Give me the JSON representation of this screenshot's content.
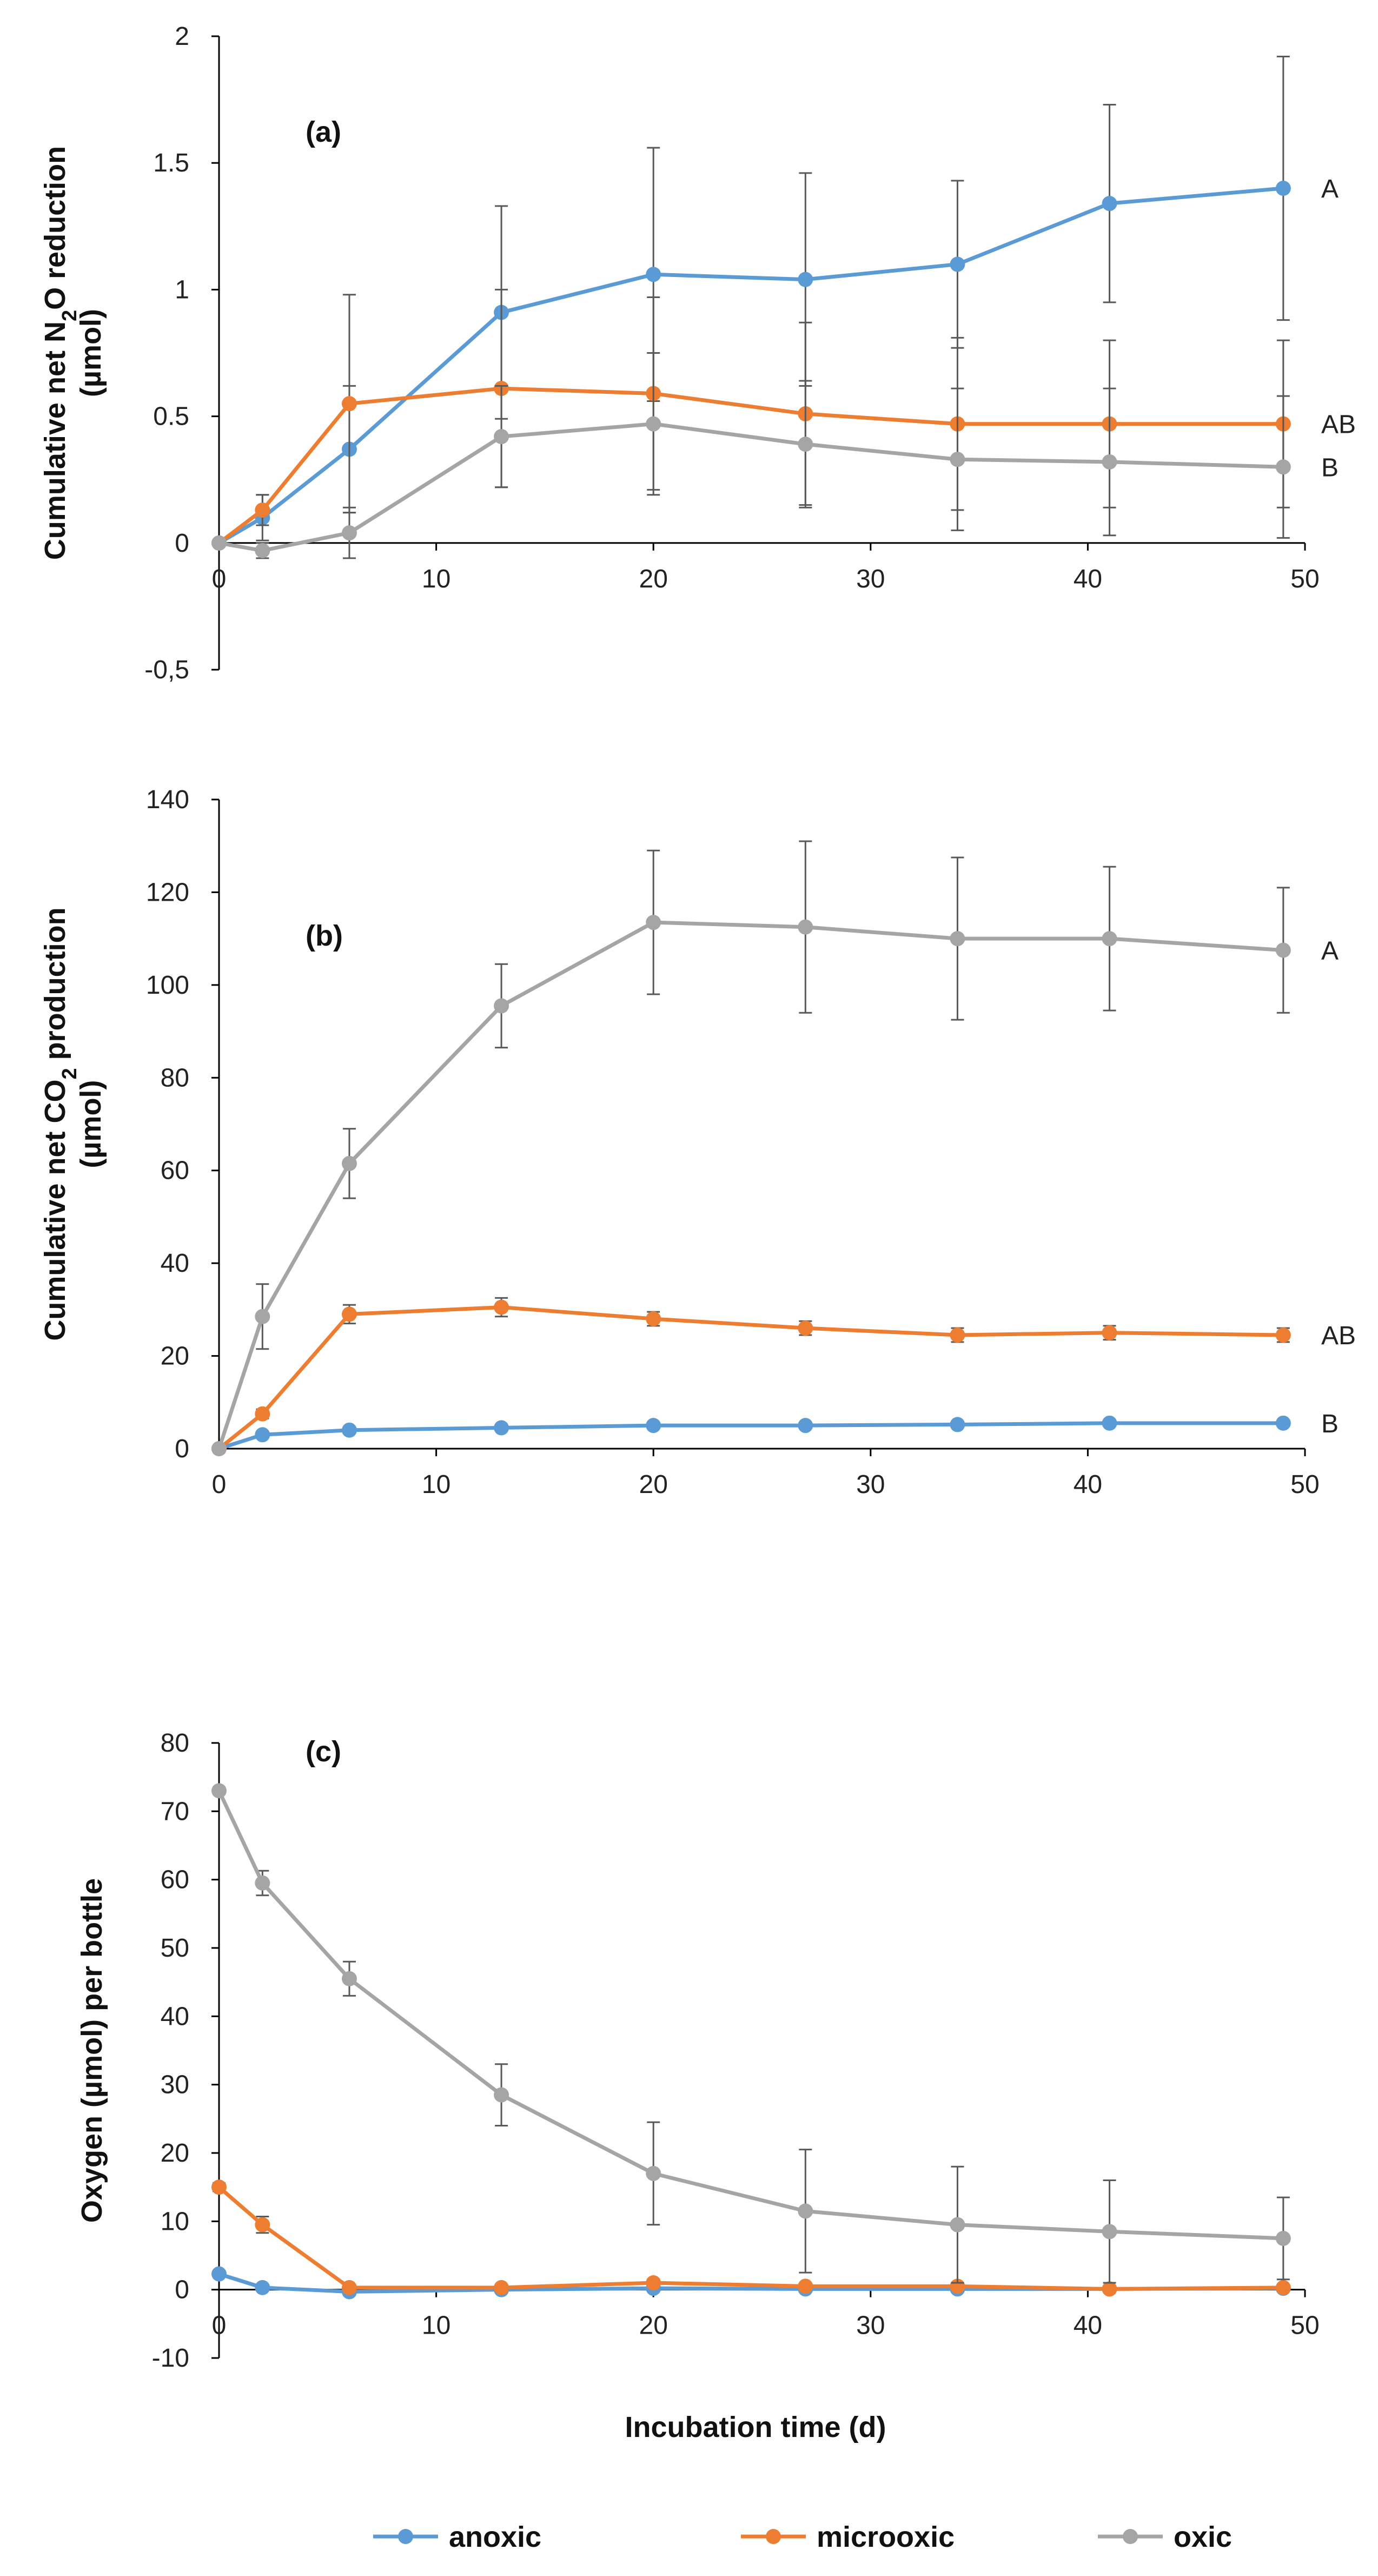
{
  "colors": {
    "anoxic": "#5B9BD5",
    "microoxic": "#ED7D31",
    "oxic": "#A5A5A5",
    "axis": "#000000",
    "errorbar": "#595959"
  },
  "legend": [
    {
      "key": "anoxic",
      "label": "anoxic"
    },
    {
      "key": "microoxic",
      "label": "microoxic"
    },
    {
      "key": "oxic",
      "label": "oxic"
    }
  ],
  "chart_data": [
    {
      "type": "line",
      "panel_label": "(a)",
      "ylabel_lines": [
        [
          "Cumulative net N",
          "2",
          "O reduction"
        ],
        [
          "(µmol)"
        ]
      ],
      "xlabel": "",
      "xlim": [
        0,
        50
      ],
      "ylim": [
        -0.5,
        2
      ],
      "xticks": [
        0,
        10,
        20,
        30,
        40,
        50
      ],
      "xtick_labels": [
        "0",
        "10",
        "20",
        "30",
        "40",
        "50"
      ],
      "yticks": [
        -0.5,
        0,
        0.5,
        1,
        1.5,
        2
      ],
      "ytick_labels": [
        "-0,5",
        "0",
        "0.5",
        "1",
        "1.5",
        "2"
      ],
      "x": [
        0,
        2,
        6,
        13,
        20,
        27,
        34,
        41,
        49
      ],
      "series": [
        {
          "name": "anoxic",
          "values": [
            0,
            0.1,
            0.37,
            0.91,
            1.06,
            1.04,
            1.1,
            1.34,
            1.4
          ],
          "errors": [
            0,
            0.09,
            0.25,
            0.42,
            0.5,
            0.42,
            0.33,
            0.39,
            0.52
          ],
          "sig_label": "A"
        },
        {
          "name": "microoxic",
          "values": [
            0,
            0.13,
            0.55,
            0.61,
            0.59,
            0.51,
            0.47,
            0.47,
            0.47
          ],
          "errors": [
            0,
            0.06,
            0.43,
            0.39,
            0.38,
            0.36,
            0.34,
            0.33,
            0.33
          ],
          "sig_label": "AB"
        },
        {
          "name": "oxic",
          "values": [
            0,
            -0.03,
            0.04,
            0.42,
            0.47,
            0.39,
            0.33,
            0.32,
            0.3
          ],
          "errors": [
            0,
            0.03,
            0.1,
            0.2,
            0.28,
            0.25,
            0.28,
            0.29,
            0.28
          ],
          "sig_label": "B"
        }
      ]
    },
    {
      "type": "line",
      "panel_label": "(b)",
      "ylabel_lines": [
        [
          "Cumulative net CO",
          "2",
          " production"
        ],
        [
          "(µmol)"
        ]
      ],
      "xlabel": "",
      "xlim": [
        0,
        50
      ],
      "ylim": [
        0,
        140
      ],
      "xticks": [
        0,
        10,
        20,
        30,
        40,
        50
      ],
      "xtick_labels": [
        "0",
        "10",
        "20",
        "30",
        "40",
        "50"
      ],
      "yticks": [
        0,
        20,
        40,
        60,
        80,
        100,
        120,
        140
      ],
      "ytick_labels": [
        "0",
        "20",
        "40",
        "60",
        "80",
        "100",
        "120",
        "140"
      ],
      "x": [
        0,
        2,
        6,
        13,
        20,
        27,
        34,
        41,
        49
      ],
      "series": [
        {
          "name": "anoxic",
          "values": [
            0,
            3,
            4,
            4.5,
            5,
            5,
            5.2,
            5.5,
            5.5
          ],
          "errors": [
            0,
            0.5,
            0.5,
            0.5,
            0.5,
            0.5,
            0.5,
            0.5,
            0.5
          ],
          "sig_label": "B"
        },
        {
          "name": "microoxic",
          "values": [
            0,
            7.5,
            29,
            30.5,
            28,
            26,
            24.5,
            25,
            24.5
          ],
          "errors": [
            0,
            1,
            2,
            2,
            1.5,
            1.5,
            1.5,
            1.5,
            1.5
          ],
          "sig_label": "AB"
        },
        {
          "name": "oxic",
          "values": [
            0,
            28.5,
            61.5,
            95.5,
            113.5,
            112.5,
            110,
            110,
            107.5
          ],
          "errors": [
            0,
            7,
            7.5,
            9,
            15.5,
            18.5,
            17.5,
            15.5,
            13.5
          ],
          "sig_label": "A"
        }
      ]
    },
    {
      "type": "line",
      "panel_label": "(c)",
      "ylabel_lines": [
        [
          "Oxygen (µmol) per bottle"
        ]
      ],
      "xlabel": "Incubation time (d)",
      "xlim": [
        0,
        50
      ],
      "ylim": [
        -10,
        80
      ],
      "xticks": [
        0,
        10,
        20,
        30,
        40,
        50
      ],
      "xtick_labels": [
        "0",
        "10",
        "20",
        "30",
        "40",
        "50"
      ],
      "yticks": [
        -10,
        0,
        10,
        20,
        30,
        40,
        50,
        60,
        70,
        80
      ],
      "ytick_labels": [
        "-10",
        "0",
        "10",
        "20",
        "30",
        "40",
        "50",
        "60",
        "70",
        "80"
      ],
      "x": [
        0,
        2,
        6,
        13,
        20,
        27,
        34,
        41,
        49
      ],
      "series": [
        {
          "name": "anoxic",
          "values": [
            2.3,
            0.3,
            -0.3,
            0,
            0.2,
            0.1,
            0.1,
            0.1,
            0.2
          ],
          "errors": [
            0.3,
            0.3,
            0.2,
            0.2,
            0.2,
            0.2,
            0.2,
            0.2,
            0.2
          ],
          "sig_label": ""
        },
        {
          "name": "microoxic",
          "values": [
            15,
            9.5,
            0.3,
            0.3,
            1,
            0.5,
            0.5,
            0.1,
            0.3
          ],
          "errors": [
            0.6,
            1.2,
            0.4,
            0.4,
            0.5,
            0.4,
            0.4,
            0.3,
            0.3
          ],
          "sig_label": ""
        },
        {
          "name": "oxic",
          "values": [
            73,
            59.5,
            45.5,
            28.5,
            17,
            11.5,
            9.5,
            8.5,
            7.5
          ],
          "errors": [
            0.5,
            1.8,
            2.5,
            4.5,
            7.5,
            9,
            8.5,
            7.5,
            6
          ],
          "sig_label": ""
        }
      ]
    }
  ]
}
